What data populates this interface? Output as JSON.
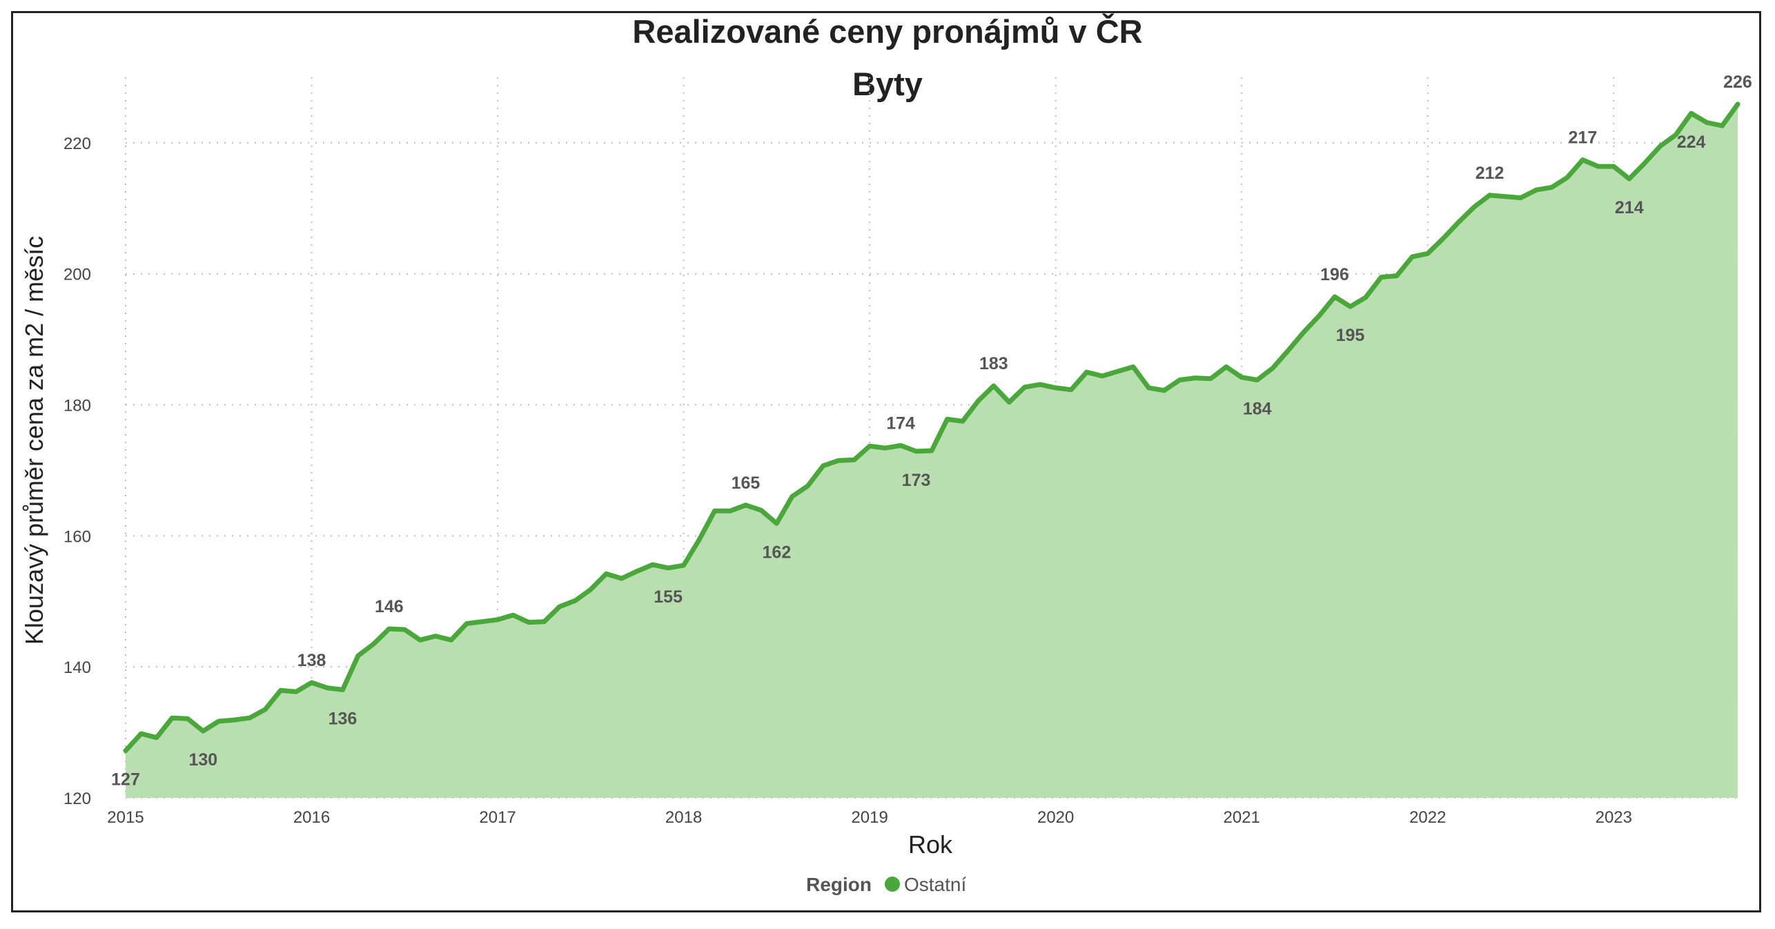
{
  "chart_data": {
    "type": "area",
    "title": "Realizované ceny pronájmů v ČR",
    "subtitle": "Byty",
    "xlabel": "Rok",
    "ylabel": "Klouzavý průměr cena za m2 / měsíc",
    "xlim": [
      2015.0,
      2023.6667
    ],
    "ylim": [
      120,
      230
    ],
    "x_ticks": [
      "2015",
      "2016",
      "2017",
      "2018",
      "2019",
      "2020",
      "2021",
      "2022",
      "2023"
    ],
    "y_ticks": [
      120,
      140,
      160,
      180,
      200,
      220
    ],
    "grid": true,
    "legend": {
      "title": "Region",
      "position": "bottom-center"
    },
    "colors": {
      "line": "#4aa73a",
      "fill": "#b9dfb0",
      "legend_marker": "#4aa73a"
    },
    "series": [
      {
        "name": "Ostatní",
        "x": [
          "2015-01",
          "2015-02",
          "2015-03",
          "2015-04",
          "2015-05",
          "2015-06",
          "2015-07",
          "2015-08",
          "2015-09",
          "2015-10",
          "2015-11",
          "2015-12",
          "2016-01",
          "2016-02",
          "2016-03",
          "2016-04",
          "2016-05",
          "2016-06",
          "2016-07",
          "2016-08",
          "2016-09",
          "2016-10",
          "2016-11",
          "2016-12",
          "2017-01",
          "2017-02",
          "2017-03",
          "2017-04",
          "2017-05",
          "2017-06",
          "2017-07",
          "2017-08",
          "2017-09",
          "2017-10",
          "2017-11",
          "2017-12",
          "2018-01",
          "2018-02",
          "2018-03",
          "2018-04",
          "2018-05",
          "2018-06",
          "2018-07",
          "2018-08",
          "2018-09",
          "2018-10",
          "2018-11",
          "2018-12",
          "2019-01",
          "2019-02",
          "2019-03",
          "2019-04",
          "2019-05",
          "2019-06",
          "2019-07",
          "2019-08",
          "2019-09",
          "2019-10",
          "2019-11",
          "2019-12",
          "2020-01",
          "2020-02",
          "2020-03",
          "2020-04",
          "2020-05",
          "2020-06",
          "2020-07",
          "2020-08",
          "2020-09",
          "2020-10",
          "2020-11",
          "2020-12",
          "2021-01",
          "2021-02",
          "2021-03",
          "2021-04",
          "2021-05",
          "2021-06",
          "2021-07",
          "2021-08",
          "2021-09",
          "2021-10",
          "2021-11",
          "2021-12",
          "2022-01",
          "2022-02",
          "2022-03",
          "2022-04",
          "2022-05",
          "2022-06",
          "2022-07",
          "2022-08",
          "2022-09",
          "2022-10",
          "2022-11",
          "2022-12",
          "2023-01",
          "2023-02",
          "2023-03",
          "2023-04",
          "2023-05",
          "2023-06",
          "2023-07",
          "2023-08",
          "2023-09"
        ],
        "values": [
          127.2,
          129.8,
          129.2,
          132.2,
          132.1,
          130.2,
          131.7,
          131.9,
          132.2,
          133.5,
          136.4,
          136.2,
          137.6,
          136.8,
          136.5,
          141.7,
          143.5,
          145.8,
          145.7,
          144.1,
          144.7,
          144.1,
          146.6,
          146.9,
          147.2,
          147.9,
          146.8,
          146.9,
          149.2,
          150.1,
          151.8,
          154.2,
          153.5,
          154.6,
          155.6,
          155.1,
          155.5,
          159.4,
          163.8,
          163.8,
          164.7,
          163.9,
          161.9,
          166.0,
          167.6,
          170.7,
          171.5,
          171.6,
          173.7,
          173.4,
          173.8,
          172.9,
          173.0,
          177.8,
          177.5,
          180.6,
          182.9,
          180.4,
          182.7,
          183.1,
          182.6,
          182.3,
          185.0,
          184.4,
          185.1,
          185.8,
          182.6,
          182.2,
          183.8,
          184.1,
          184.0,
          185.8,
          184.2,
          183.8,
          185.6,
          188.3,
          191.1,
          193.6,
          196.5,
          195.0,
          196.4,
          199.5,
          199.7,
          202.6,
          203.1,
          205.4,
          207.9,
          210.2,
          212.0,
          211.8,
          211.6,
          212.8,
          213.2,
          214.7,
          217.4,
          216.4,
          216.4,
          214.5,
          216.9,
          219.5,
          221.2,
          224.5,
          223.1,
          222.6,
          225.9
        ]
      }
    ],
    "annotations": [
      {
        "x": "2015-01",
        "y": 127.2,
        "text": "127",
        "pos": "below"
      },
      {
        "x": "2015-06",
        "y": 130.2,
        "text": "130",
        "pos": "below"
      },
      {
        "x": "2016-01",
        "y": 137.6,
        "text": "138",
        "pos": "above"
      },
      {
        "x": "2016-03",
        "y": 136.5,
        "text": "136",
        "pos": "below"
      },
      {
        "x": "2016-06",
        "y": 145.8,
        "text": "146",
        "pos": "above"
      },
      {
        "x": "2017-12",
        "y": 155.1,
        "text": "155",
        "pos": "below"
      },
      {
        "x": "2018-05",
        "y": 164.7,
        "text": "165",
        "pos": "above"
      },
      {
        "x": "2018-07",
        "y": 161.9,
        "text": "162",
        "pos": "below"
      },
      {
        "x": "2019-03",
        "y": 173.8,
        "text": "174",
        "pos": "above"
      },
      {
        "x": "2019-04",
        "y": 172.9,
        "text": "173",
        "pos": "below"
      },
      {
        "x": "2019-09",
        "y": 182.9,
        "text": "183",
        "pos": "above"
      },
      {
        "x": "2021-02",
        "y": 183.8,
        "text": "184",
        "pos": "below"
      },
      {
        "x": "2021-07",
        "y": 196.5,
        "text": "196",
        "pos": "above"
      },
      {
        "x": "2021-08",
        "y": 195.0,
        "text": "195",
        "pos": "below"
      },
      {
        "x": "2022-05",
        "y": 212.0,
        "text": "212",
        "pos": "above"
      },
      {
        "x": "2022-11",
        "y": 217.4,
        "text": "217",
        "pos": "above"
      },
      {
        "x": "2023-02",
        "y": 214.5,
        "text": "214",
        "pos": "below"
      },
      {
        "x": "2023-06",
        "y": 224.5,
        "text": "224",
        "pos": "below"
      },
      {
        "x": "2023-09",
        "y": 225.9,
        "text": "226",
        "pos": "above"
      }
    ]
  }
}
